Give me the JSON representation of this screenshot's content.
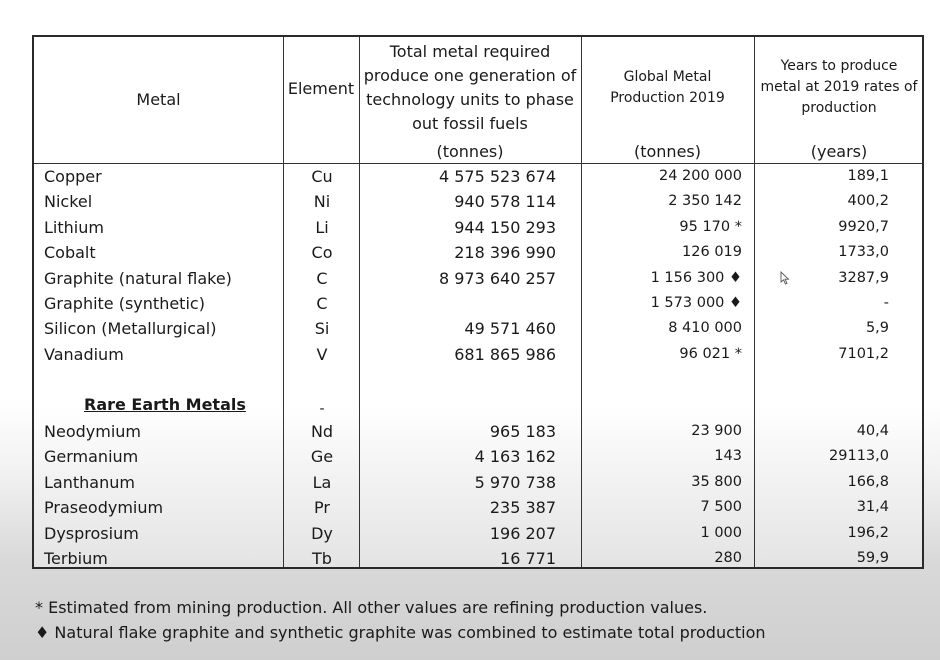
{
  "table": {
    "headers": {
      "metal": "Metal",
      "element": "Element",
      "total_lines": [
        "Total metal required",
        "produce one generation of",
        "technology units to phase",
        "out fossil fuels"
      ],
      "total_unit": "(tonnes)",
      "global_lines": [
        "Global Metal",
        "Production 2019"
      ],
      "global_unit": "(tonnes)",
      "years_lines": [
        "Years to produce",
        "metal at 2019 rates of",
        "production"
      ],
      "years_unit": "(years)"
    },
    "rows": [
      {
        "metal": "Copper",
        "element": "Cu",
        "total": "4 575 523 674",
        "global": "24 200 000",
        "years": "189,1"
      },
      {
        "metal": "Nickel",
        "element": "Ni",
        "total": "940 578 114",
        "global": "2 350 142",
        "years": "400,2"
      },
      {
        "metal": "Lithium",
        "element": "Li",
        "total": "944 150 293",
        "global": "95 170 *",
        "years": "9920,7"
      },
      {
        "metal": "Cobalt",
        "element": "Co",
        "total": "218 396 990",
        "global": "126 019",
        "years": "1733,0"
      },
      {
        "metal": "Graphite (natural flake)",
        "element": "C",
        "total": "8 973 640 257",
        "global": "1 156 300 ♦",
        "years": "3287,9"
      },
      {
        "metal": "Graphite (synthetic)",
        "element": "C",
        "total": "",
        "global": "1 573 000 ♦",
        "years": "-"
      },
      {
        "metal": "Silicon (Metallurgical)",
        "element": "Si",
        "total": "49 571 460",
        "global": "8 410 000",
        "years": "5,9"
      },
      {
        "metal": "Vanadium",
        "element": "V",
        "total": "681 865 986",
        "global": "96 021 *",
        "years": "7101,2"
      }
    ],
    "section": {
      "title": "Rare Earth Metals",
      "element": "-"
    },
    "rare_rows": [
      {
        "metal": "Neodymium",
        "element": "Nd",
        "total": "965 183",
        "global": "23 900",
        "years": "40,4"
      },
      {
        "metal": "Germanium",
        "element": "Ge",
        "total": "4 163 162",
        "global": "143",
        "years": "29113,0"
      },
      {
        "metal": "Lanthanum",
        "element": "La",
        "total": "5 970 738",
        "global": "35 800",
        "years": "166,8"
      },
      {
        "metal": "Praseodymium",
        "element": "Pr",
        "total": "235 387",
        "global": "7 500",
        "years": "31,4"
      },
      {
        "metal": "Dysprosium",
        "element": "Dy",
        "total": "196 207",
        "global": "1 000",
        "years": "196,2"
      },
      {
        "metal": "Terbium",
        "element": "Tb",
        "total": "16 771",
        "global": "280",
        "years": "59,9"
      }
    ]
  },
  "footnotes": [
    "* Estimated from mining production.  All other values are refining production values.",
    "♦  Natural flake graphite and synthetic graphite was combined to estimate total production"
  ]
}
